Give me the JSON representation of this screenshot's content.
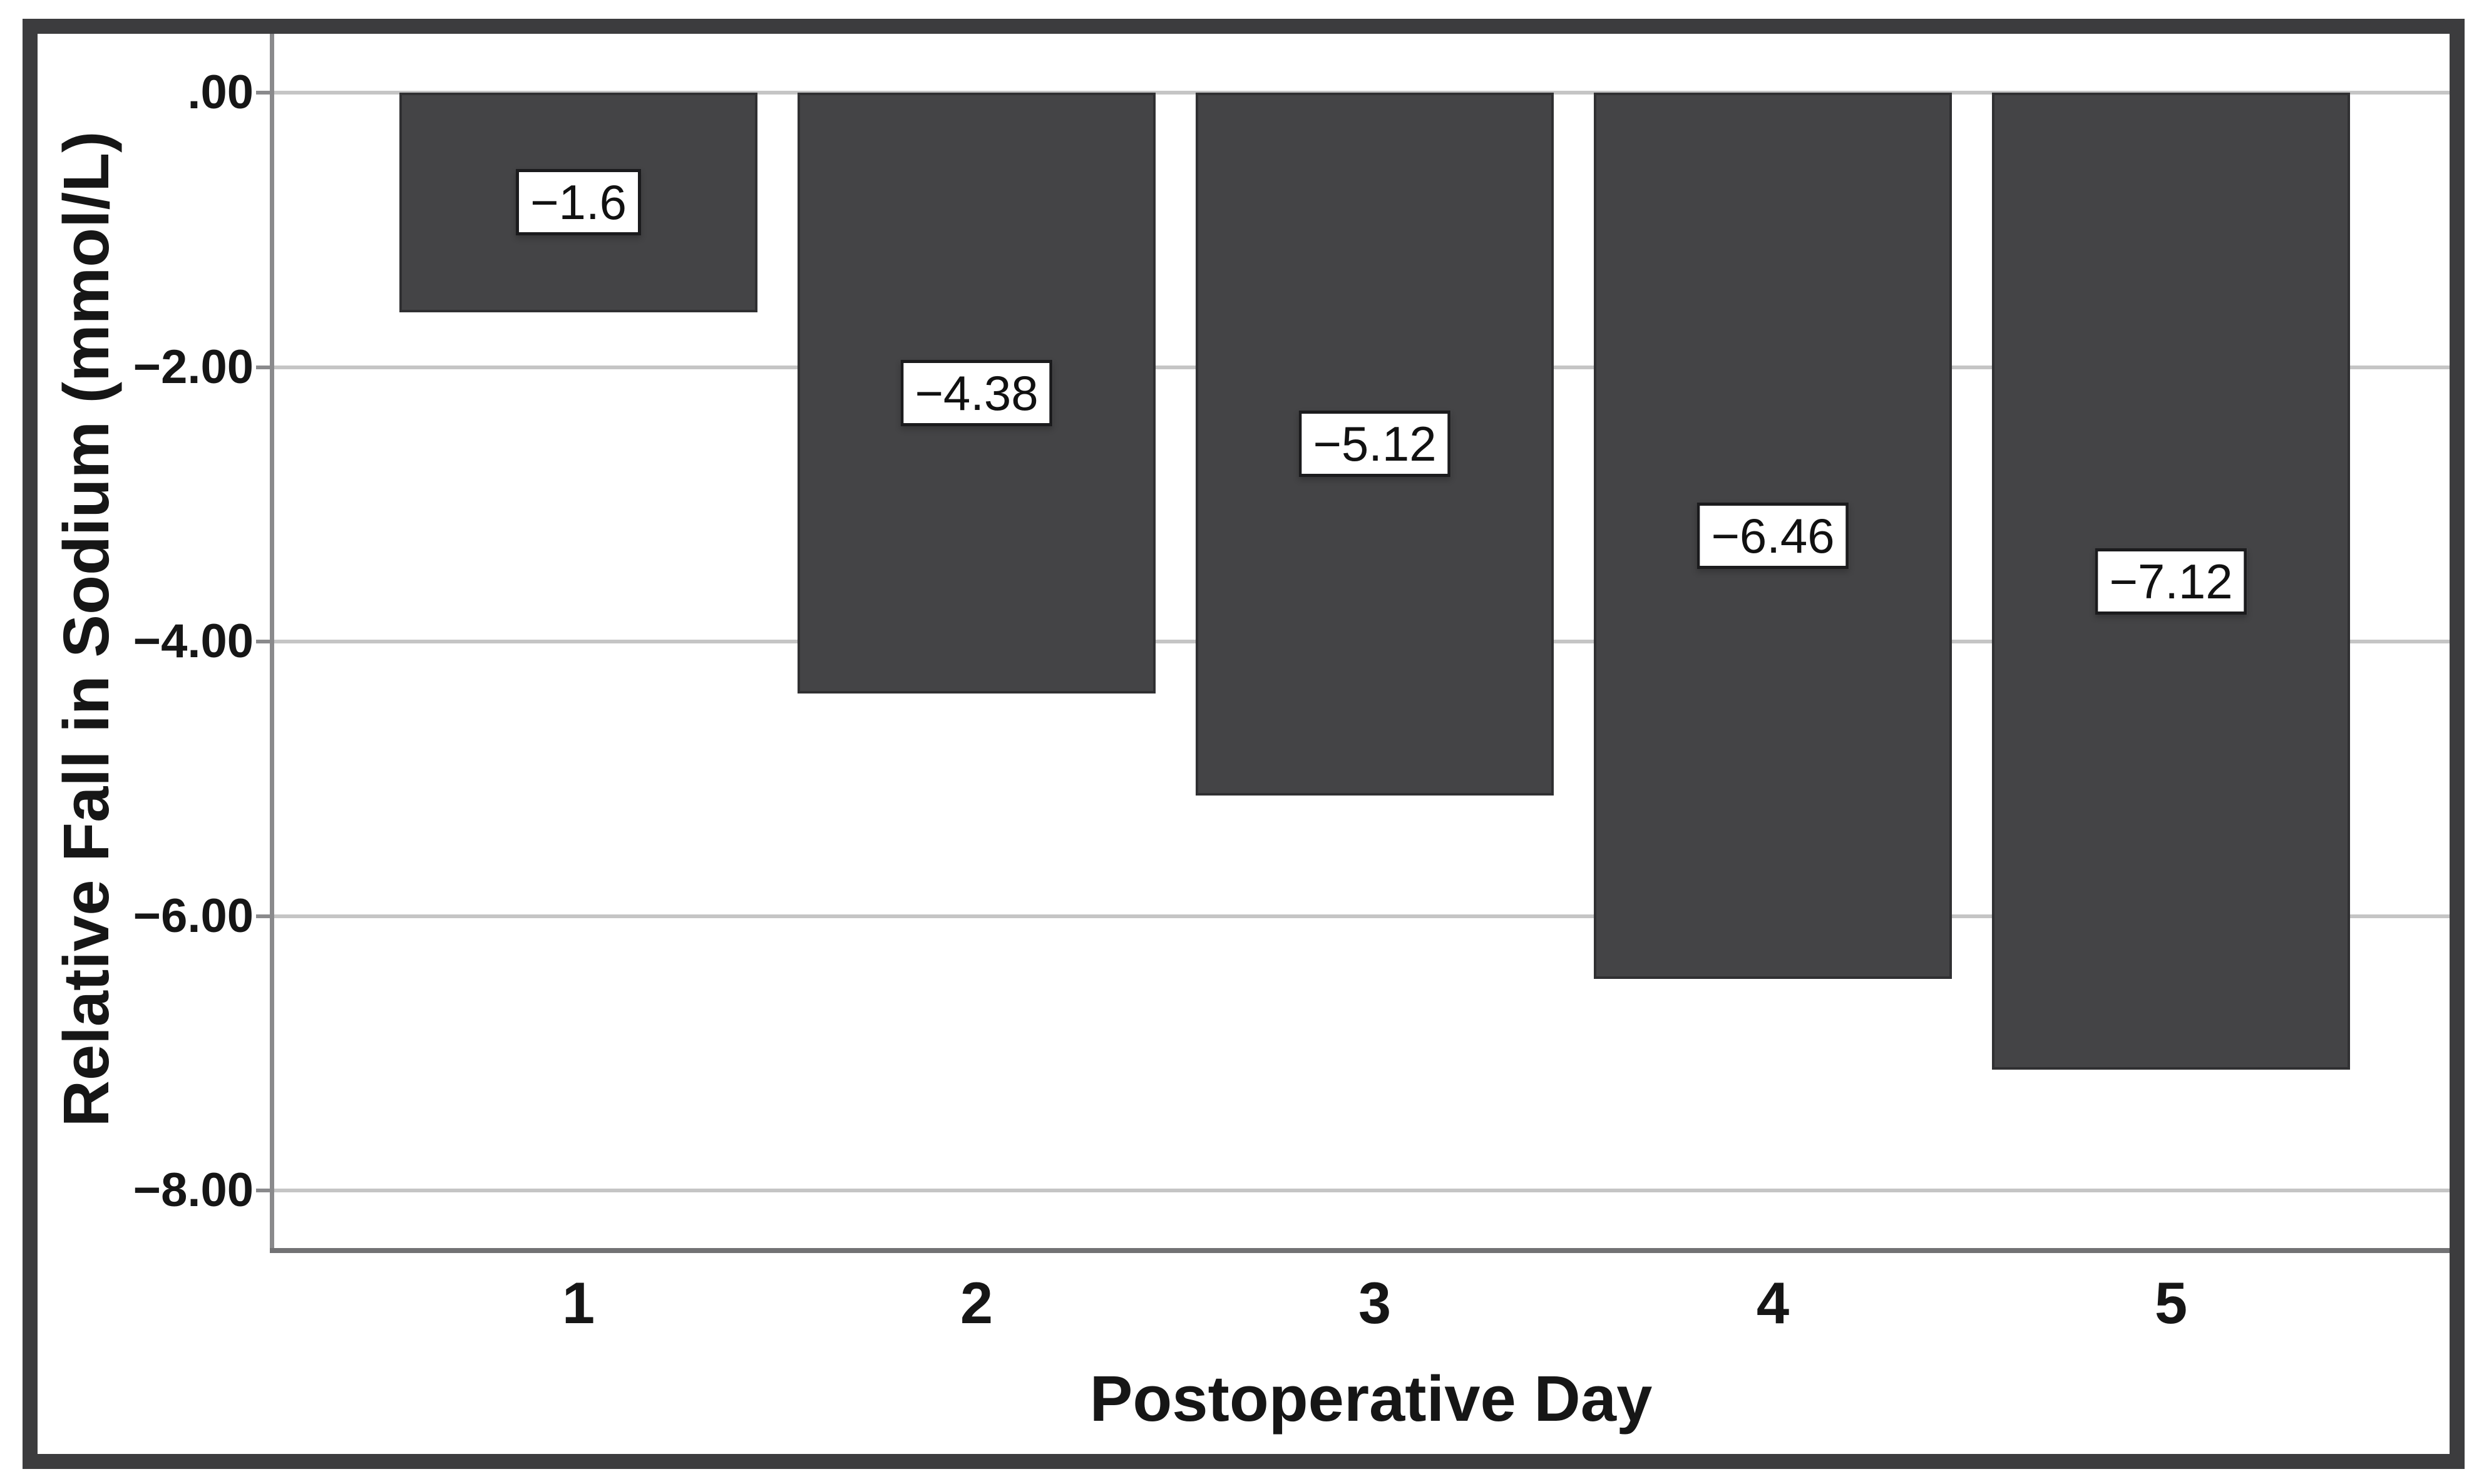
{
  "chart_data": {
    "type": "bar",
    "title": "",
    "xlabel": "Postoperative Day",
    "ylabel": "Relative Fall in Sodium (mmol/L)",
    "categories": [
      "1",
      "2",
      "3",
      "4",
      "5"
    ],
    "values": [
      -1.6,
      -4.38,
      -5.12,
      -6.46,
      -7.12
    ],
    "bar_labels": [
      "−1.6",
      "−4.38",
      "−5.12",
      "−6.46",
      "−7.12"
    ],
    "yticks": [
      0,
      -2,
      -4,
      -6,
      -8
    ],
    "ytick_labels": [
      ".00",
      "−2.00",
      "−4.00",
      "−6.00",
      "−8.00"
    ],
    "ylim": [
      -8.45,
      0.43
    ],
    "grid": "horizontal",
    "legend": "none",
    "bar_color": "#444446",
    "bar_border_color": "#303032",
    "gridline_color": "#c5c5c5",
    "axis_line_color": "#8a8a8c",
    "figure_border_color": "#3c3c3e",
    "label_box_background": "#ffffff",
    "label_box_border_color": "#1b1b1d"
  }
}
